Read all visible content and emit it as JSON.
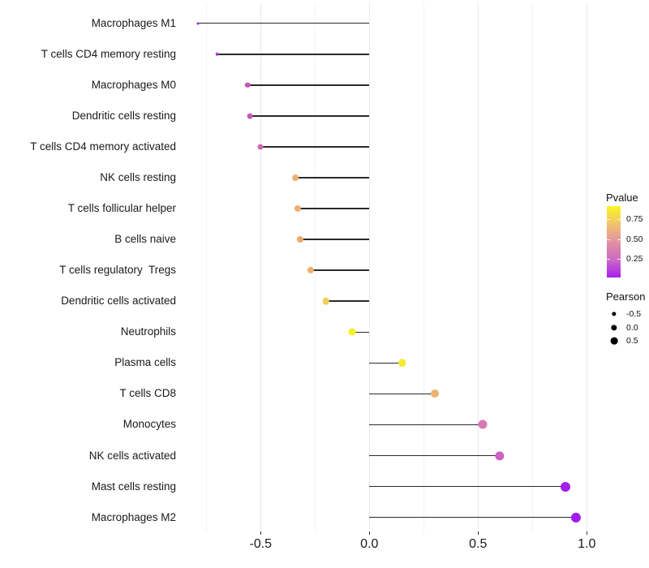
{
  "chart_data": {
    "type": "scatter",
    "subtype": "horizontal-lollipop",
    "title": "",
    "xlabel": "",
    "ylabel": "",
    "xlim": [
      -0.87,
      1.03
    ],
    "grid": true,
    "x_ticks": [
      -0.5,
      0.0,
      0.5,
      1.0
    ],
    "x_tick_labels": [
      "-0.5",
      "0.0",
      "0.5",
      "1.0"
    ],
    "x_minor_ticks": [
      -0.75,
      -0.25,
      0.25,
      0.75
    ],
    "points": [
      {
        "label": "Macrophages M1",
        "pearson": -0.79,
        "color": "#962dd4",
        "size": 3.0
      },
      {
        "label": "T cells CD4 memory resting",
        "pearson": -0.7,
        "color": "#ad3bd0",
        "size": 4.6
      },
      {
        "label": "Macrophages M0",
        "pearson": -0.56,
        "color": "#c355bb",
        "size": 6.6
      },
      {
        "label": "Dendritic cells resting",
        "pearson": -0.55,
        "color": "#c45cb6",
        "size": 6.8
      },
      {
        "label": "T cells CD4 memory activated",
        "pearson": -0.5,
        "color": "#cc68ae",
        "size": 7.0
      },
      {
        "label": "NK cells resting",
        "pearson": -0.34,
        "color": "#eeae72",
        "size": 7.9
      },
      {
        "label": "T cells follicular helper",
        "pearson": -0.33,
        "color": "#eeae72",
        "size": 8.0
      },
      {
        "label": "B cells naive",
        "pearson": -0.32,
        "color": "#eda86f",
        "size": 8.0
      },
      {
        "label": "T cells regulatory  Tregs",
        "pearson": -0.27,
        "color": "#eeb269",
        "size": 8.2
      },
      {
        "label": "Dendritic cells activated",
        "pearson": -0.2,
        "color": "#f2cd57",
        "size": 8.7
      },
      {
        "label": "Neutrophils",
        "pearson": -0.08,
        "color": "#f6ef25",
        "size": 9.0
      },
      {
        "label": "Plasma cells",
        "pearson": 0.15,
        "color": "#f5ec31",
        "size": 9.5
      },
      {
        "label": "T cells CD8",
        "pearson": 0.3,
        "color": "#edb36e",
        "size": 10.0
      },
      {
        "label": "Monocytes",
        "pearson": 0.52,
        "color": "#d878b4",
        "size": 11.0
      },
      {
        "label": "NK cells activated",
        "pearson": 0.6,
        "color": "#cb63c1",
        "size": 11.3
      },
      {
        "label": "Mast cells resting",
        "pearson": 0.9,
        "color": "#a21ee8",
        "size": 12.0
      },
      {
        "label": "Macrophages M2",
        "pearson": 0.95,
        "color": "#a01cea",
        "size": 12.2
      }
    ],
    "legend": {
      "pvalue": {
        "title": "Pvalue",
        "tick_labels": [
          "0.75",
          "0.50",
          "0.25"
        ],
        "gradient_top_to_bottom": [
          "#faf723",
          "#f2c36e",
          "#e293a2",
          "#cc6ac4",
          "#a81ff0"
        ]
      },
      "pearson": {
        "title": "Pearson",
        "items": [
          {
            "label": "-0.5",
            "size": 5.3
          },
          {
            "label": "0.0",
            "size": 7.3
          },
          {
            "label": "0.5",
            "size": 8.7
          }
        ]
      }
    }
  }
}
